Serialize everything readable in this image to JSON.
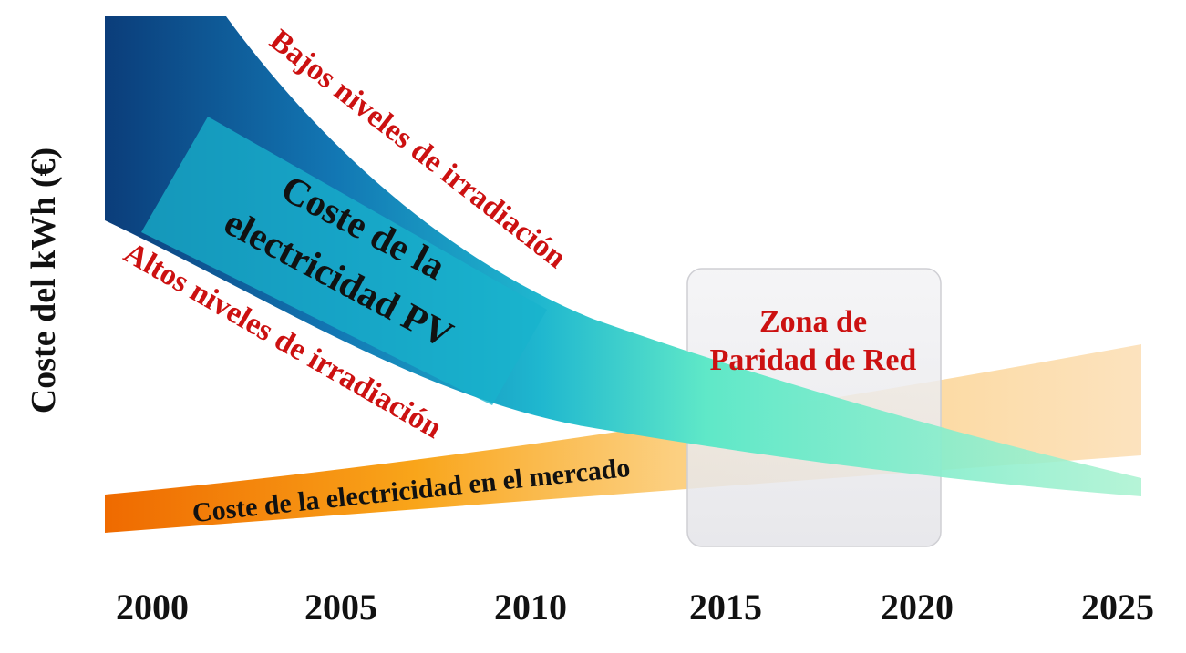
{
  "y_axis_label": "Coste del kWh (€)",
  "x_axis_ticks": [
    "2000",
    "2005",
    "2010",
    "2015",
    "2020",
    "2025"
  ],
  "pv_band": {
    "label_line1": "Coste de la",
    "label_line2": "electricidad PV",
    "upper_edge_label": "Bajos niveles de irradiación",
    "lower_edge_label": "Altos niveles de irradiación"
  },
  "market_band": {
    "label": "Coste de la electricidad en el mercado"
  },
  "grid_parity_zone": {
    "label_line1": "Zona de",
    "label_line2": "Paridad de Red"
  },
  "colors": {
    "pv_dark": "#0b3d7a",
    "pv_mid": "#1aa6c4",
    "pv_light": "#8ff0c8",
    "market_dark": "#f07000",
    "market_light": "#fbd9a8",
    "zone_fill": "#e8e8ec",
    "label_red": "#cc1111"
  }
}
